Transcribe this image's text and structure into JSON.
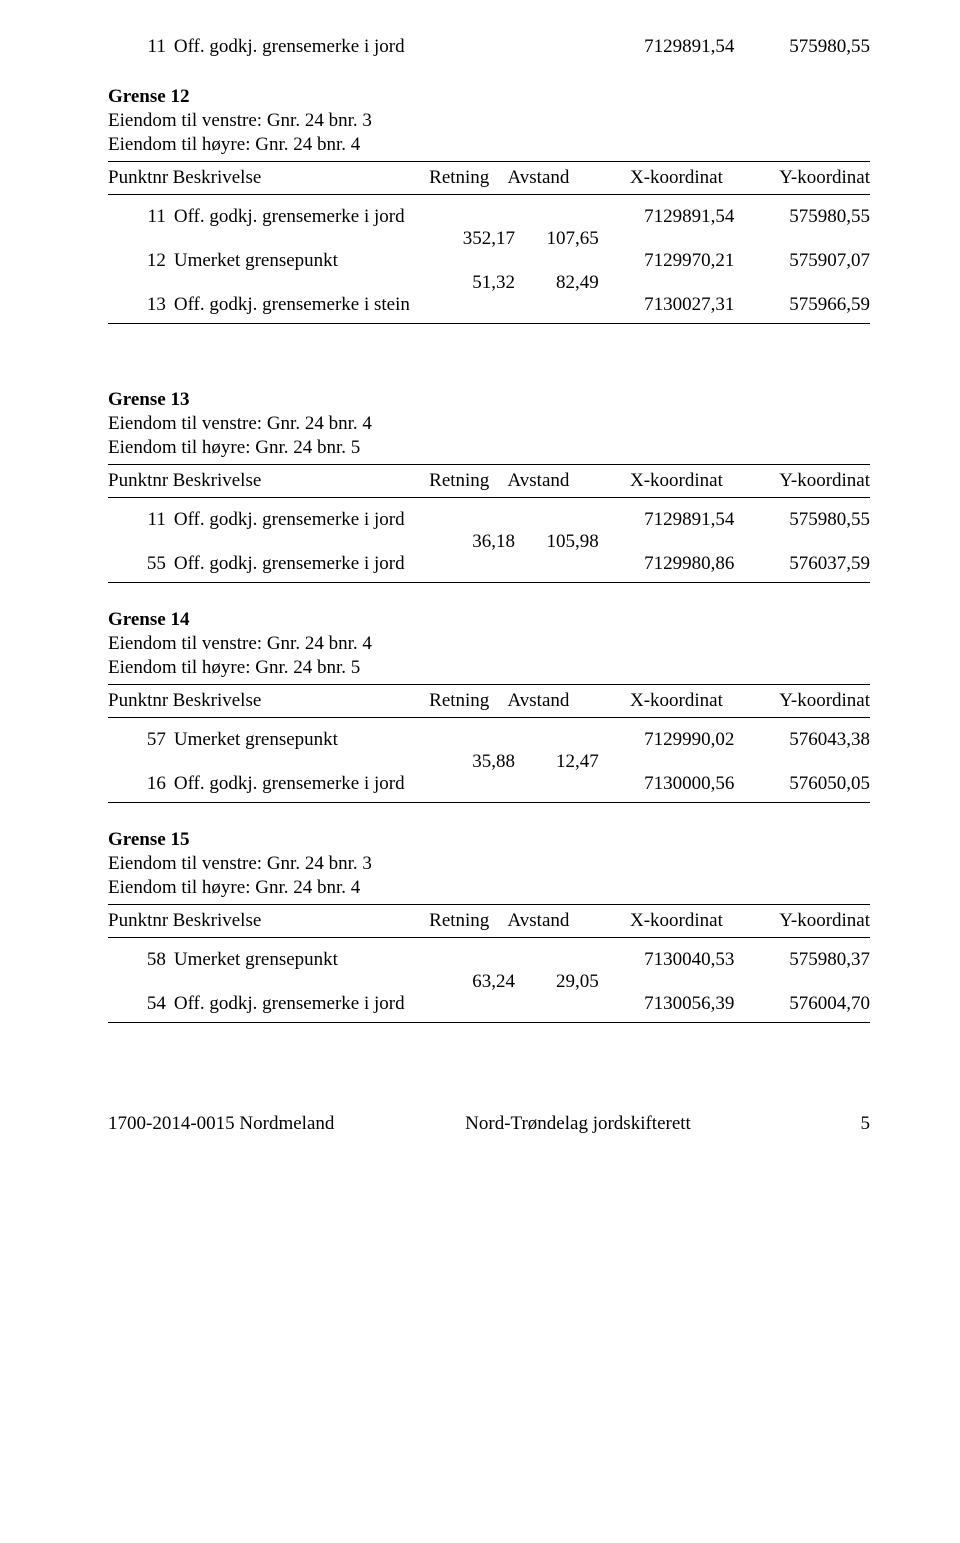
{
  "colors": {
    "text": "#000000",
    "background": "#ffffff",
    "rule": "#000000"
  },
  "typography": {
    "font_family": "Times New Roman",
    "body_size_pt": 14
  },
  "header_labels": {
    "punktnr": "Punktnr",
    "beskrivelse": "Beskrivelse",
    "retning": "Retning",
    "avstand": "Avstand",
    "x": "X-koordinat",
    "y": "Y-koordinat"
  },
  "top_row": {
    "pnr": "11",
    "besk": "Off. godkj. grensemerke i jord",
    "x": "7129891,54",
    "y": "575980,55"
  },
  "sections": [
    {
      "title": "Grense 12",
      "venstre": "Eiendom til venstre: Gnr. 24 bnr. 3",
      "hoyre": "Eiendom til høyre: Gnr. 24 bnr. 4",
      "rows": [
        {
          "pnr": "11",
          "besk": "Off. godkj. grensemerke i jord",
          "x": "7129891,54",
          "y": "575980,55"
        },
        {
          "ret": "352,17",
          "avs": "107,65"
        },
        {
          "pnr": "12",
          "besk": "Umerket grensepunkt",
          "x": "7129970,21",
          "y": "575907,07"
        },
        {
          "ret": "51,32",
          "avs": "82,49"
        },
        {
          "pnr": "13",
          "besk": "Off. godkj. grensemerke i stein",
          "x": "7130027,31",
          "y": "575966,59"
        }
      ]
    },
    {
      "title": "Grense 13",
      "venstre": "Eiendom til venstre: Gnr. 24 bnr. 4",
      "hoyre": "Eiendom til høyre: Gnr. 24 bnr. 5",
      "rows": [
        {
          "pnr": "11",
          "besk": "Off. godkj. grensemerke i jord",
          "x": "7129891,54",
          "y": "575980,55"
        },
        {
          "ret": "36,18",
          "avs": "105,98"
        },
        {
          "pnr": "55",
          "besk": "Off. godkj. grensemerke i jord",
          "x": "7129980,86",
          "y": "576037,59"
        }
      ]
    },
    {
      "title": "Grense 14",
      "venstre": "Eiendom til venstre: Gnr. 24 bnr. 4",
      "hoyre": "Eiendom til høyre: Gnr. 24 bnr. 5",
      "rows": [
        {
          "pnr": "57",
          "besk": "Umerket grensepunkt",
          "x": "7129990,02",
          "y": "576043,38"
        },
        {
          "ret": "35,88",
          "avs": "12,47"
        },
        {
          "pnr": "16",
          "besk": "Off. godkj. grensemerke i jord",
          "x": "7130000,56",
          "y": "576050,05"
        }
      ]
    },
    {
      "title": "Grense 15",
      "venstre": "Eiendom til venstre: Gnr. 24 bnr. 3",
      "hoyre": "Eiendom til høyre: Gnr. 24 bnr. 4",
      "rows": [
        {
          "pnr": "58",
          "besk": "Umerket grensepunkt",
          "x": "7130040,53",
          "y": "575980,37"
        },
        {
          "ret": "63,24",
          "avs": "29,05"
        },
        {
          "pnr": "54",
          "besk": "Off. godkj. grensemerke i jord",
          "x": "7130056,39",
          "y": "576004,70"
        }
      ]
    }
  ],
  "footer": {
    "left": "1700-2014-0015 Nordmeland",
    "mid": "Nord-Trøndelag  jordskifterett",
    "page": "5"
  }
}
